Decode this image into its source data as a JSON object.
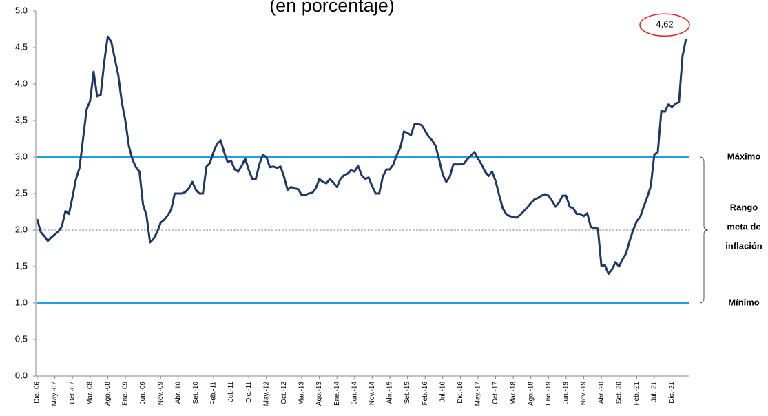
{
  "chart_data": {
    "type": "line",
    "title": "(en porcentaje)",
    "categories": [
      "Dic.-06",
      null,
      null,
      null,
      null,
      "May.-07",
      null,
      null,
      null,
      null,
      "Oct.-07",
      null,
      null,
      null,
      null,
      "Mar.-08",
      null,
      null,
      null,
      null,
      "Ago.-08",
      null,
      null,
      null,
      null,
      "Ene.-09",
      null,
      null,
      null,
      null,
      "Jun.-09",
      null,
      null,
      null,
      null,
      "Nov.-09",
      null,
      null,
      null,
      null,
      "Abr.-10",
      null,
      null,
      null,
      null,
      "Set.-10",
      null,
      null,
      null,
      null,
      "Feb.-11",
      null,
      null,
      null,
      null,
      "Jul.-11",
      null,
      null,
      null,
      null,
      "Dic.-11",
      null,
      null,
      null,
      null,
      "May.-12",
      null,
      null,
      null,
      null,
      "Oct.-12",
      null,
      null,
      null,
      null,
      "Mar.-13",
      null,
      null,
      null,
      null,
      "Ago.-13",
      null,
      null,
      null,
      null,
      "Ene.-14",
      null,
      null,
      null,
      null,
      "Jun.-14",
      null,
      null,
      null,
      null,
      "Nov.-14",
      null,
      null,
      null,
      null,
      "Abr.-15",
      null,
      null,
      null,
      null,
      "Set.-15",
      null,
      null,
      null,
      null,
      "Feb.-16",
      null,
      null,
      null,
      null,
      "Jul.-16",
      null,
      null,
      null,
      null,
      "Dic.-16",
      null,
      null,
      null,
      null,
      "May.-17",
      null,
      null,
      null,
      null,
      "Oct.-17",
      null,
      null,
      null,
      null,
      "Mar.-18",
      null,
      null,
      null,
      null,
      "Ago.-18",
      null,
      null,
      null,
      null,
      "Ene.-19",
      null,
      null,
      null,
      null,
      "Jun.-19",
      null,
      null,
      null,
      null,
      "Nov.-19",
      null,
      null,
      null,
      null,
      "Abr.-20",
      null,
      null,
      null,
      null,
      "Set.-20",
      null,
      null,
      null,
      null,
      "Feb.-21",
      null,
      null,
      null,
      null,
      "Jul.-21",
      null,
      null,
      null,
      null,
      "Dic.-21",
      null,
      null,
      null,
      null
    ],
    "series": [
      {
        "color": "#1f3864",
        "values": [
          2.15,
          1.97,
          1.92,
          1.85,
          1.9,
          1.94,
          1.98,
          2.05,
          2.26,
          2.22,
          2.45,
          2.7,
          2.85,
          3.25,
          3.65,
          3.77,
          4.17,
          3.83,
          3.85,
          4.3,
          4.65,
          4.58,
          4.35,
          4.12,
          3.75,
          3.5,
          3.15,
          2.97,
          2.86,
          2.8,
          2.35,
          2.2,
          1.83,
          1.88,
          1.97,
          2.1,
          2.14,
          2.2,
          2.28,
          2.5,
          2.5,
          2.5,
          2.52,
          2.57,
          2.66,
          2.55,
          2.5,
          2.5,
          2.87,
          2.92,
          3.07,
          3.18,
          3.23,
          3.07,
          2.93,
          2.95,
          2.83,
          2.8,
          2.88,
          2.98,
          2.82,
          2.7,
          2.7,
          2.9,
          3.03,
          3.0,
          2.86,
          2.87,
          2.85,
          2.87,
          2.73,
          2.55,
          2.59,
          2.57,
          2.56,
          2.48,
          2.48,
          2.5,
          2.51,
          2.57,
          2.7,
          2.66,
          2.64,
          2.7,
          2.65,
          2.59,
          2.7,
          2.75,
          2.77,
          2.82,
          2.8,
          2.88,
          2.75,
          2.7,
          2.72,
          2.6,
          2.5,
          2.5,
          2.73,
          2.83,
          2.83,
          2.9,
          3.03,
          3.13,
          3.35,
          3.33,
          3.3,
          3.45,
          3.45,
          3.44,
          3.36,
          3.28,
          3.23,
          3.15,
          2.96,
          2.76,
          2.66,
          2.73,
          2.9,
          2.9,
          2.9,
          2.91,
          2.97,
          3.02,
          3.07,
          2.98,
          2.9,
          2.8,
          2.74,
          2.8,
          2.67,
          2.48,
          2.3,
          2.22,
          2.19,
          2.18,
          2.17,
          2.21,
          2.26,
          2.31,
          2.37,
          2.42,
          2.44,
          2.47,
          2.49,
          2.47,
          2.4,
          2.32,
          2.38,
          2.47,
          2.47,
          2.32,
          2.3,
          2.22,
          2.22,
          2.19,
          2.23,
          2.04,
          2.03,
          2.02,
          1.51,
          1.52,
          1.4,
          1.46,
          1.56,
          1.5,
          1.6,
          1.68,
          1.85,
          2.0,
          2.12,
          2.18,
          2.32,
          2.45,
          2.6,
          3.03,
          3.07,
          3.63,
          3.62,
          3.72,
          3.68,
          3.73,
          3.75,
          4.38,
          4.62
        ]
      }
    ],
    "ylim": [
      0,
      5
    ],
    "yticks": [
      {
        "value": 0,
        "label": "0,0"
      },
      {
        "value": 0.5,
        "label": "0,5"
      },
      {
        "value": 1,
        "label": "1,0"
      },
      {
        "value": 1.5,
        "label": "1,5"
      },
      {
        "value": 2,
        "label": "2,0"
      },
      {
        "value": 2.5,
        "label": "2,5"
      },
      {
        "value": 3,
        "label": "3,0"
      },
      {
        "value": 3.5,
        "label": "3,5"
      },
      {
        "value": 4,
        "label": "4,0"
      },
      {
        "value": 4.5,
        "label": "4,5"
      },
      {
        "value": 5,
        "label": "5,0"
      }
    ],
    "ref_lines": [
      {
        "value": 3,
        "color": "#1ba1e2",
        "label": "Máximo"
      },
      {
        "value": 1,
        "color": "#1ba1e2",
        "label": "Mínimo"
      }
    ],
    "target": {
      "value": 2,
      "color": "#8c8c8c",
      "label": [
        "Rango",
        "meta de",
        "inflación"
      ]
    },
    "annotation": {
      "value": 4.62,
      "label": "4,62",
      "color": "#e0201b"
    }
  }
}
